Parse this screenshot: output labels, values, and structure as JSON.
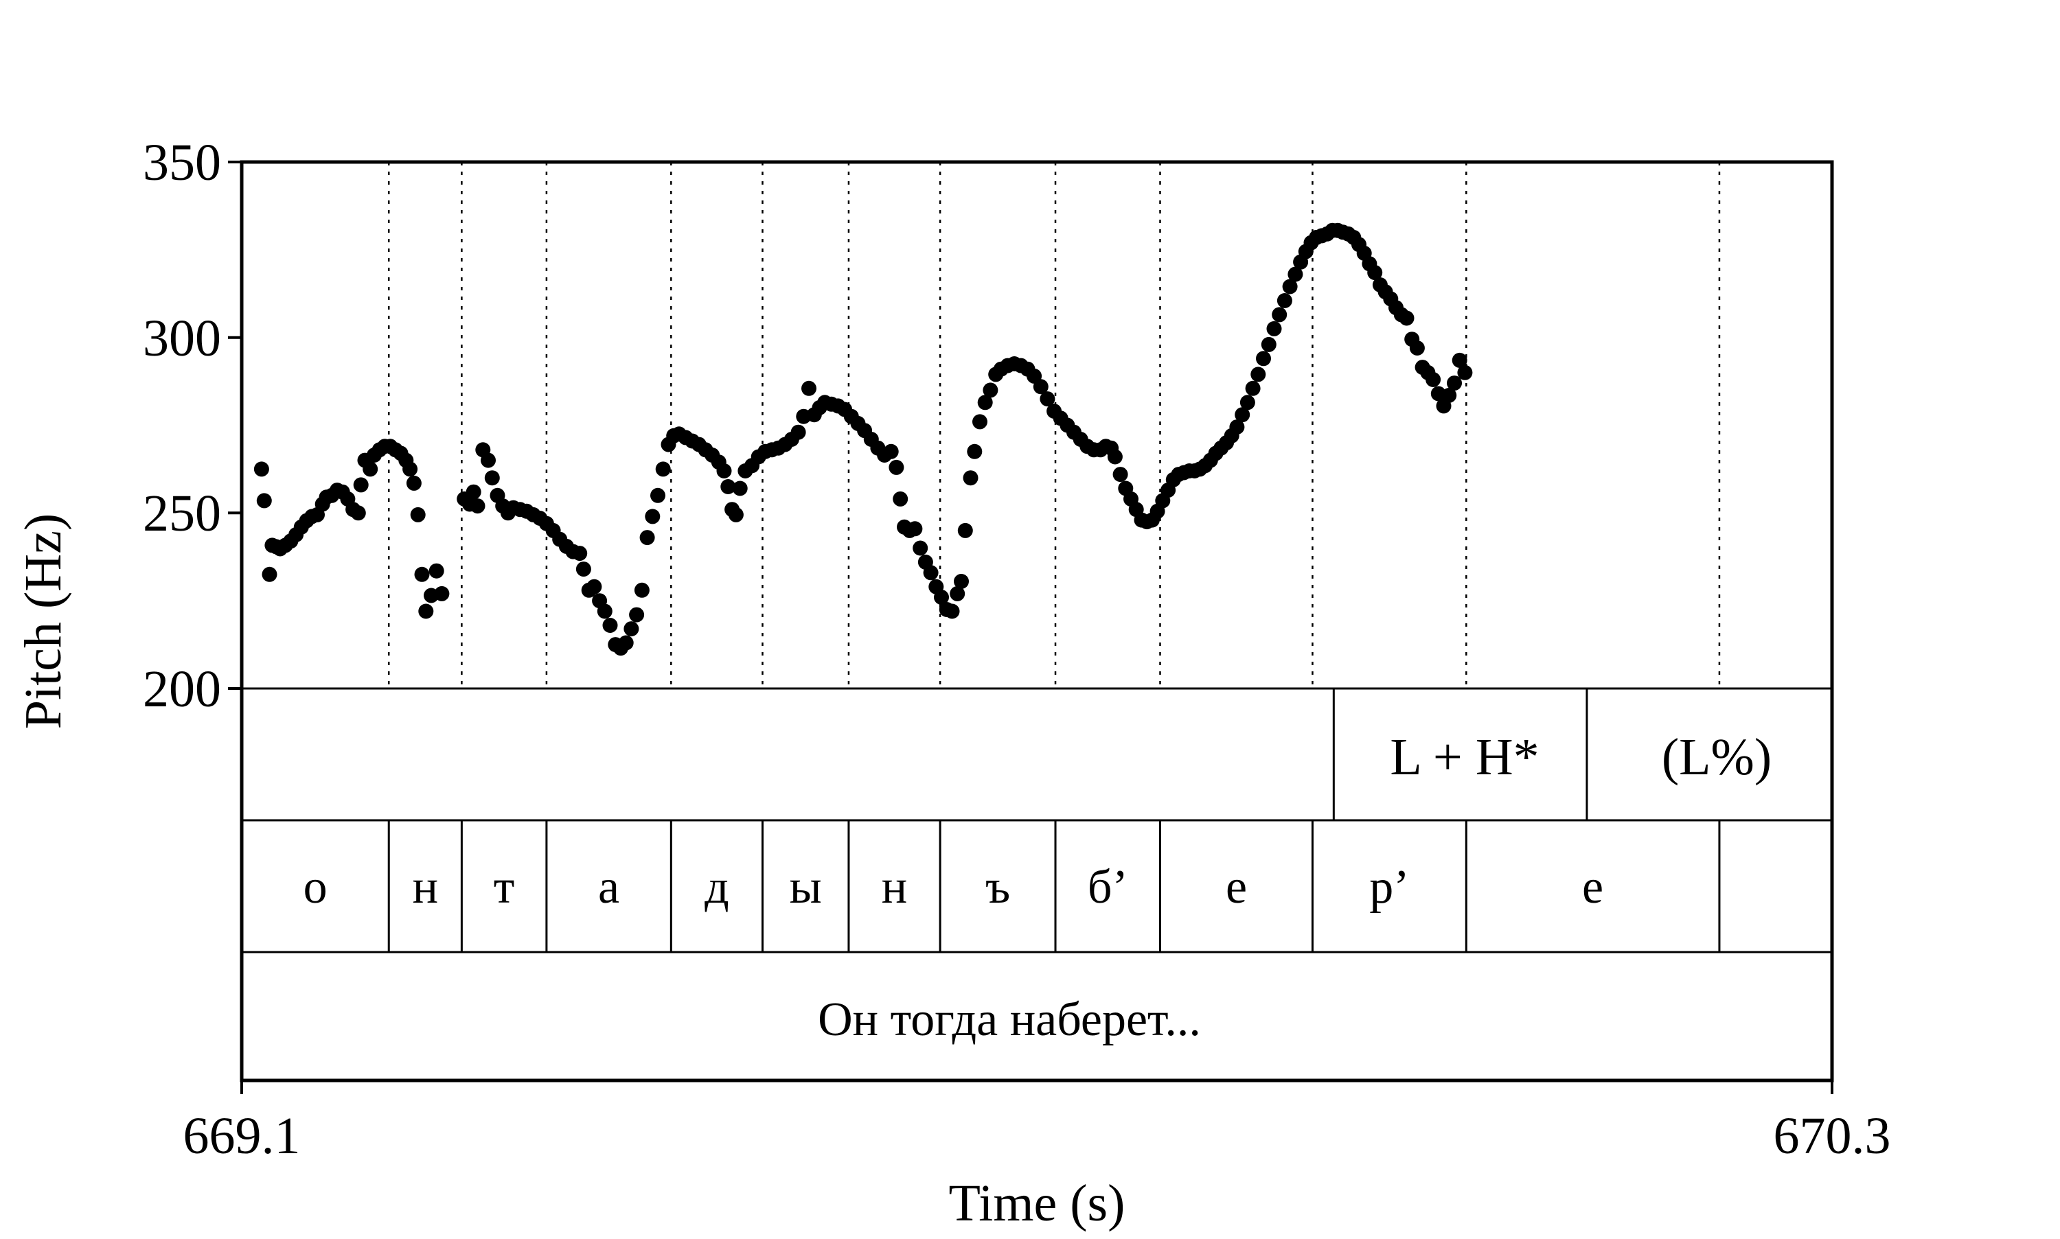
{
  "chart_data": {
    "type": "scatter",
    "xlabel": "Time (s)",
    "ylabel": "Pitch (Hz)",
    "xlim": [
      669.1,
      670.3
    ],
    "ylim": [
      200,
      350
    ],
    "x_tick_labels": [
      "669.1",
      "670.3"
    ],
    "y_tick_labels": [
      "350",
      "300",
      "250",
      "200"
    ],
    "y_ticks": [
      350,
      300,
      250,
      200
    ],
    "grid": false,
    "marker_color": "#000000",
    "series": [
      {
        "points": [
          [
            669.115,
            262.5
          ],
          [
            669.117,
            253.5
          ],
          [
            669.121,
            232.5
          ],
          [
            669.123,
            240.8
          ],
          [
            669.126,
            240.4
          ],
          [
            669.129,
            239.8
          ],
          [
            669.133,
            240.8
          ],
          [
            669.137,
            242.0
          ],
          [
            669.141,
            243.8
          ],
          [
            669.145,
            246.0
          ],
          [
            669.149,
            247.8
          ],
          [
            669.153,
            249.0
          ],
          [
            669.157,
            249.5
          ],
          [
            669.161,
            252.5
          ],
          [
            669.164,
            254.5
          ],
          [
            669.168,
            255.0
          ],
          [
            669.172,
            256.5
          ],
          [
            669.176,
            256.0
          ],
          [
            669.18,
            254.0
          ],
          [
            669.184,
            251.0
          ],
          [
            669.188,
            250.0
          ],
          [
            669.19,
            258.0
          ],
          [
            669.193,
            265.0
          ],
          [
            669.197,
            262.5
          ],
          [
            669.2,
            266.5
          ],
          [
            669.204,
            268.0
          ],
          [
            669.208,
            269.0
          ],
          [
            669.212,
            269.0
          ],
          [
            669.216,
            268.0
          ],
          [
            669.22,
            267.0
          ],
          [
            669.224,
            265.0
          ],
          [
            669.227,
            262.5
          ],
          [
            669.23,
            258.5
          ],
          [
            669.233,
            249.5
          ],
          [
            669.236,
            232.5
          ],
          [
            669.239,
            222.0
          ],
          [
            669.243,
            226.5
          ],
          [
            669.247,
            233.5
          ],
          [
            669.251,
            227.0
          ],
          [
            669.268,
            254.0
          ],
          [
            669.272,
            252.5
          ],
          [
            669.275,
            256.0
          ],
          [
            669.278,
            252.0
          ],
          [
            669.282,
            268.0
          ],
          [
            669.286,
            265.0
          ],
          [
            669.289,
            260.0
          ],
          [
            669.293,
            255.0
          ],
          [
            669.297,
            252.0
          ],
          [
            669.301,
            250.0
          ],
          [
            669.305,
            251.5
          ],
          [
            669.31,
            251.0
          ],
          [
            669.315,
            250.5
          ],
          [
            669.32,
            249.5
          ],
          [
            669.325,
            248.5
          ],
          [
            669.33,
            247.0
          ],
          [
            669.335,
            245.0
          ],
          [
            669.34,
            242.5
          ],
          [
            669.345,
            240.5
          ],
          [
            669.35,
            239.0
          ],
          [
            669.355,
            238.5
          ],
          [
            669.358,
            234.0
          ],
          [
            669.362,
            228.0
          ],
          [
            669.366,
            229.0
          ],
          [
            669.37,
            225.0
          ],
          [
            669.374,
            222.0
          ],
          [
            669.378,
            218.0
          ],
          [
            669.382,
            212.5
          ],
          [
            669.386,
            211.5
          ],
          [
            669.39,
            213.0
          ],
          [
            669.394,
            217.0
          ],
          [
            669.398,
            221.0
          ],
          [
            669.402,
            228.0
          ],
          [
            669.406,
            243.0
          ],
          [
            669.41,
            249.0
          ],
          [
            669.414,
            255.0
          ],
          [
            669.418,
            262.5
          ],
          [
            669.422,
            269.5
          ],
          [
            669.426,
            272.0
          ],
          [
            669.43,
            272.5
          ],
          [
            669.435,
            271.5
          ],
          [
            669.44,
            270.5
          ],
          [
            669.445,
            269.5
          ],
          [
            669.45,
            268.0
          ],
          [
            669.455,
            266.5
          ],
          [
            669.46,
            264.5
          ],
          [
            669.464,
            262.0
          ],
          [
            669.467,
            257.5
          ],
          [
            669.47,
            251.0
          ],
          [
            669.473,
            249.5
          ],
          [
            669.476,
            257.0
          ],
          [
            669.48,
            262.0
          ],
          [
            669.485,
            263.5
          ],
          [
            669.49,
            266.0
          ],
          [
            669.495,
            267.5
          ],
          [
            669.5,
            268.0
          ],
          [
            669.505,
            268.5
          ],
          [
            669.51,
            269.5
          ],
          [
            669.515,
            271.0
          ],
          [
            669.52,
            273.0
          ],
          [
            669.524,
            277.5
          ],
          [
            669.528,
            285.5
          ],
          [
            669.532,
            278.0
          ],
          [
            669.536,
            280.0
          ],
          [
            669.54,
            281.5
          ],
          [
            669.545,
            281.0
          ],
          [
            669.55,
            280.5
          ],
          [
            669.555,
            279.5
          ],
          [
            669.56,
            277.5
          ],
          [
            669.565,
            275.5
          ],
          [
            669.57,
            273.5
          ],
          [
            669.575,
            271.0
          ],
          [
            669.58,
            268.5
          ],
          [
            669.585,
            266.5
          ],
          [
            669.59,
            267.5
          ],
          [
            669.594,
            263.0
          ],
          [
            669.597,
            254.0
          ],
          [
            669.6,
            246.0
          ],
          [
            669.604,
            245.0
          ],
          [
            669.608,
            245.5
          ],
          [
            669.612,
            240.0
          ],
          [
            669.616,
            236.0
          ],
          [
            669.62,
            233.0
          ],
          [
            669.624,
            229.0
          ],
          [
            669.628,
            226.0
          ],
          [
            669.632,
            222.5
          ],
          [
            669.636,
            222.0
          ],
          [
            669.64,
            227.0
          ],
          [
            669.643,
            230.5
          ],
          [
            669.646,
            245.0
          ],
          [
            669.65,
            260.0
          ],
          [
            669.653,
            267.5
          ],
          [
            669.657,
            276.0
          ],
          [
            669.661,
            281.5
          ],
          [
            669.665,
            285.0
          ],
          [
            669.669,
            289.5
          ],
          [
            669.673,
            291.0
          ],
          [
            669.678,
            292.0
          ],
          [
            669.683,
            292.5
          ],
          [
            669.688,
            292.0
          ],
          [
            669.693,
            291.0
          ],
          [
            669.698,
            289.0
          ],
          [
            669.703,
            286.0
          ],
          [
            669.708,
            282.5
          ],
          [
            669.713,
            279.0
          ],
          [
            669.718,
            277.0
          ],
          [
            669.723,
            275.0
          ],
          [
            669.728,
            273.0
          ],
          [
            669.733,
            271.0
          ],
          [
            669.738,
            269.0
          ],
          [
            669.743,
            268.0
          ],
          [
            669.748,
            268.0
          ],
          [
            669.752,
            269.0
          ],
          [
            669.756,
            268.5
          ],
          [
            669.759,
            266.0
          ],
          [
            669.763,
            261.0
          ],
          [
            669.767,
            257.0
          ],
          [
            669.771,
            254.0
          ],
          [
            669.775,
            251.0
          ],
          [
            669.779,
            248.0
          ],
          [
            669.783,
            247.5
          ],
          [
            669.787,
            248.0
          ],
          [
            669.791,
            250.5
          ],
          [
            669.795,
            253.5
          ],
          [
            669.799,
            256.5
          ],
          [
            669.803,
            259.5
          ],
          [
            669.807,
            261.0
          ],
          [
            669.811,
            261.5
          ],
          [
            669.815,
            262.0
          ],
          [
            669.819,
            262.0
          ],
          [
            669.823,
            262.5
          ],
          [
            669.827,
            263.5
          ],
          [
            669.831,
            265.0
          ],
          [
            669.835,
            267.0
          ],
          [
            669.839,
            268.5
          ],
          [
            669.843,
            270.0
          ],
          [
            669.847,
            272.0
          ],
          [
            669.851,
            274.5
          ],
          [
            669.855,
            278.0
          ],
          [
            669.859,
            281.5
          ],
          [
            669.863,
            285.5
          ],
          [
            669.867,
            289.5
          ],
          [
            669.871,
            294.0
          ],
          [
            669.875,
            298.0
          ],
          [
            669.879,
            302.5
          ],
          [
            669.883,
            306.5
          ],
          [
            669.887,
            310.5
          ],
          [
            669.891,
            314.5
          ],
          [
            669.895,
            318.0
          ],
          [
            669.899,
            321.5
          ],
          [
            669.903,
            324.5
          ],
          [
            669.907,
            327.0
          ],
          [
            669.911,
            328.5
          ],
          [
            669.915,
            329.0
          ],
          [
            669.919,
            329.5
          ],
          [
            669.923,
            330.5
          ],
          [
            669.927,
            330.5
          ],
          [
            669.931,
            330.0
          ],
          [
            669.935,
            329.5
          ],
          [
            669.939,
            328.5
          ],
          [
            669.943,
            326.5
          ],
          [
            669.947,
            324.0
          ],
          [
            669.951,
            321.0
          ],
          [
            669.955,
            318.5
          ],
          [
            669.959,
            315.0
          ],
          [
            669.963,
            313.0
          ],
          [
            669.967,
            311.0
          ],
          [
            669.971,
            308.5
          ],
          [
            669.975,
            306.5
          ],
          [
            669.979,
            305.5
          ],
          [
            669.983,
            299.5
          ],
          [
            669.987,
            297.0
          ],
          [
            669.991,
            291.5
          ],
          [
            669.995,
            290.0
          ],
          [
            669.999,
            288.0
          ],
          [
            670.003,
            284.0
          ],
          [
            670.007,
            280.5
          ],
          [
            670.011,
            283.5
          ],
          [
            670.015,
            287.0
          ],
          [
            670.019,
            293.5
          ],
          [
            670.023,
            290.0
          ]
        ]
      }
    ]
  },
  "tone_tier": {
    "labels": [
      {
        "text": "L + H*",
        "x": 669.026
      },
      {
        "text": "(L%)",
        "x": 670.098
      }
    ],
    "boundaries": [
      669.924,
      670.115
    ]
  },
  "segment_tier": {
    "segments": [
      {
        "label": "о",
        "start": 669.1,
        "end": 669.211
      },
      {
        "label": "н",
        "start": 669.211,
        "end": 669.266
      },
      {
        "label": "т",
        "start": 669.266,
        "end": 669.33
      },
      {
        "label": "а",
        "start": 669.33,
        "end": 669.424
      },
      {
        "label": "д",
        "start": 669.424,
        "end": 669.493
      },
      {
        "label": "ы",
        "start": 669.493,
        "end": 669.558
      },
      {
        "label": "н",
        "start": 669.558,
        "end": 669.627
      },
      {
        "label": "ъ",
        "start": 669.627,
        "end": 669.714
      },
      {
        "label": "б’",
        "start": 669.714,
        "end": 669.793
      },
      {
        "label": "е",
        "start": 669.793,
        "end": 669.908
      },
      {
        "label": "р’",
        "start": 669.908,
        "end": 670.024
      },
      {
        "label": "е",
        "start": 670.024,
        "end": 670.215
      },
      {
        "label": "",
        "start": 670.215,
        "end": 670.3
      }
    ]
  },
  "phrase_tier": {
    "text": "Он тогда наберет..."
  }
}
